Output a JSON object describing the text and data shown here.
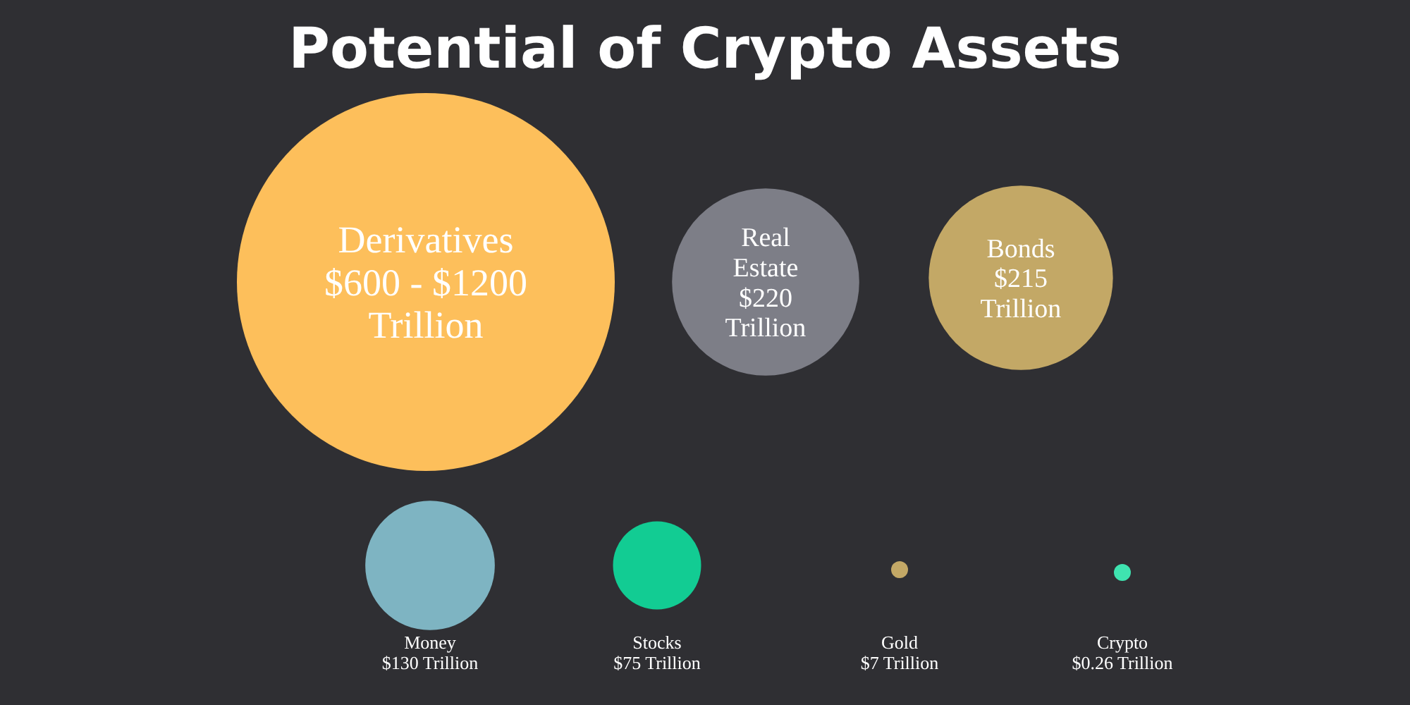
{
  "chart_data": {
    "type": "other",
    "title": "Potential of Crypto Assets",
    "categories": [
      "Derivatives",
      "Real Estate",
      "Bonds",
      "Money",
      "Stocks",
      "Gold",
      "Crypto"
    ],
    "values": [
      600,
      220,
      215,
      130,
      75,
      7,
      0.26
    ],
    "value_labels": [
      "$600 - $1200 Trillion",
      "$220 Trillion",
      "$215 Trillion",
      "$130 Trillion",
      "$75 Trillion",
      "$7 Trillion",
      "$0.26 Trillion"
    ],
    "colors": [
      "#fdbf5b",
      "#7d7e87",
      "#c3a866",
      "#7eb4c2",
      "#12cc93",
      "#c3a866",
      "#3fe3b0"
    ]
  }
}
